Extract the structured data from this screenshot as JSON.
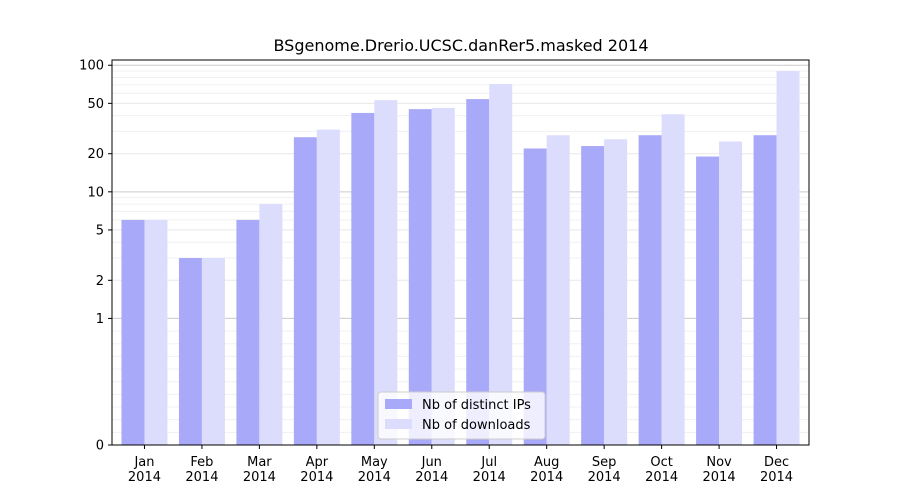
{
  "chart_data": {
    "type": "bar",
    "title": "BSgenome.Drerio.UCSC.danRer5.masked 2014",
    "xlabel": "",
    "ylabel": "",
    "yscale": "symlog",
    "ylim": [
      0,
      110
    ],
    "y_ticks": [
      0,
      1,
      2,
      5,
      10,
      20,
      50,
      100
    ],
    "y_tick_labels": [
      "0",
      "1",
      "2",
      "5",
      "10",
      "20",
      "50",
      "100"
    ],
    "categories": [
      "Jan\n2014",
      "Feb\n2014",
      "Mar\n2014",
      "Apr\n2014",
      "May\n2014",
      "Jun\n2014",
      "Jul\n2014",
      "Aug\n2014",
      "Sep\n2014",
      "Oct\n2014",
      "Nov\n2014",
      "Dec\n2014"
    ],
    "series": [
      {
        "name": "Nb of distinct IPs",
        "color": "#a9a9f9",
        "values": [
          6,
          3,
          6,
          27,
          42,
          45,
          54,
          22,
          23,
          28,
          19,
          28
        ]
      },
      {
        "name": "Nb of downloads",
        "color": "#dcdcfc",
        "values": [
          6,
          3,
          8,
          31,
          53,
          46,
          71,
          28,
          26,
          41,
          25,
          90
        ]
      }
    ],
    "grid": true,
    "legend_position": "bottom-center"
  }
}
